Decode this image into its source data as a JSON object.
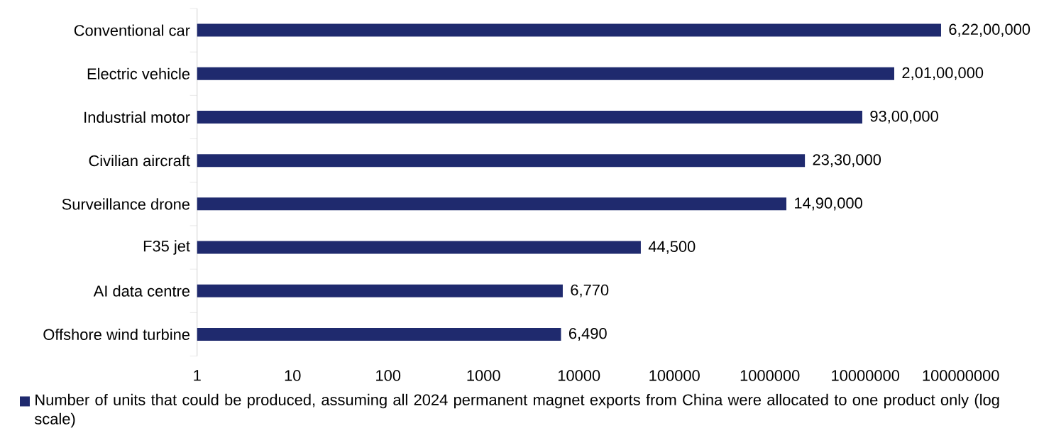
{
  "chart_data": {
    "type": "bar",
    "orientation": "horizontal",
    "log": "x",
    "categories": [
      "Conventional car",
      "Electric vehicle",
      "Industrial motor",
      "Civilian aircraft",
      "Surveillance drone",
      "F35 jet",
      "AI data centre",
      "Offshore wind turbine"
    ],
    "series": [
      {
        "name": "Number of units that could be produced, assuming all 2024 permanent magnet exports from China were allocated to one product only (log scale)",
        "color": "#1f2a6e",
        "values": [
          62200000,
          20100000,
          9300000,
          2330000,
          1490000,
          44500,
          6770,
          6490
        ],
        "value_labels": [
          "6,22,00,000",
          "2,01,00,000",
          "93,00,000",
          "23,30,000",
          "14,90,000",
          "44,500",
          "6,770",
          "6,490"
        ]
      }
    ],
    "xlim": [
      1,
      100000000
    ],
    "xticks": [
      1,
      10,
      100,
      1000,
      10000,
      100000,
      1000000,
      10000000,
      100000000
    ],
    "grid": false,
    "legend": "bottom"
  }
}
